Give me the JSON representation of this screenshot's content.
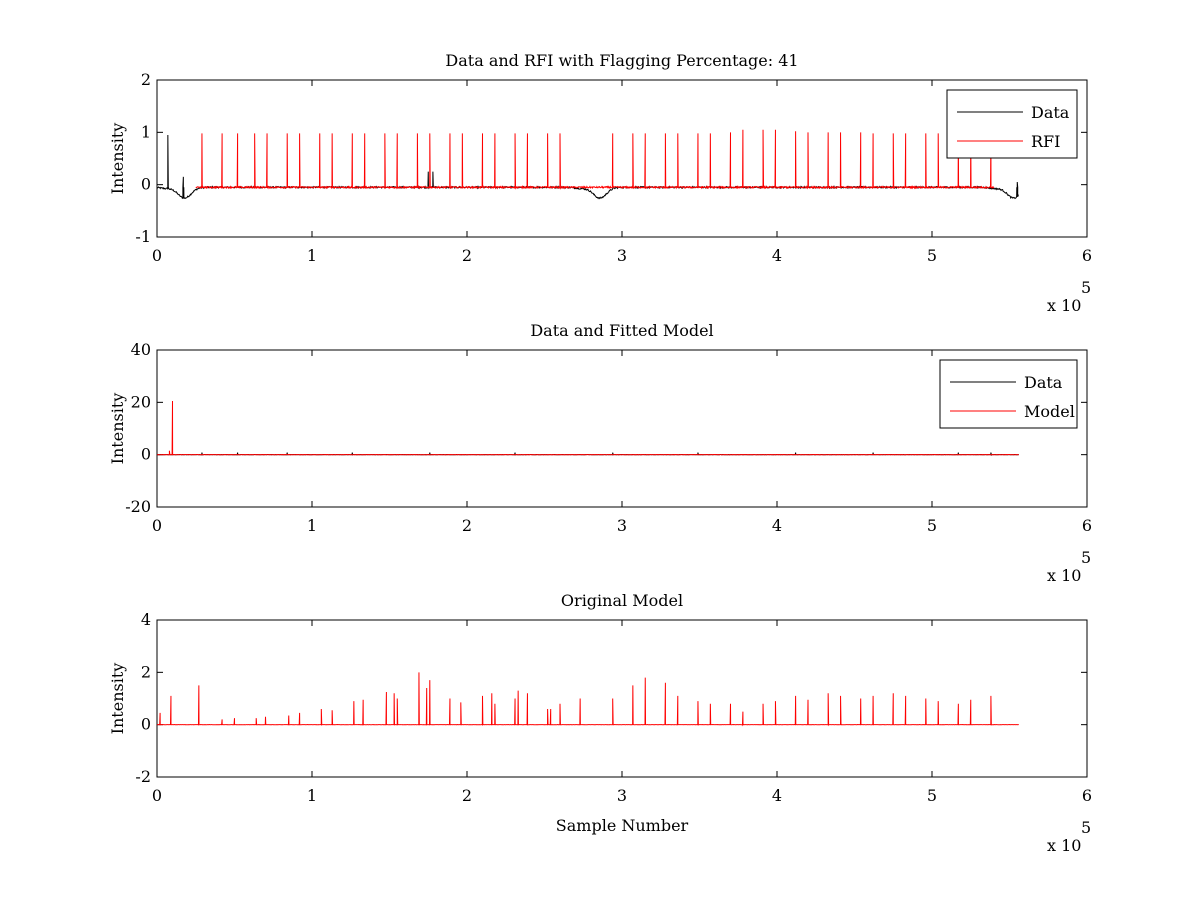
{
  "figure": {
    "background": "#ffffff",
    "axis_color": "#000000"
  },
  "chart_data": [
    {
      "type": "line",
      "title": "Data and RFI with Flagging Percentage: 41",
      "xlabel": "",
      "ylabel": "Intensity",
      "xlim": [
        0,
        600000
      ],
      "ylim": [
        -1,
        2
      ],
      "xticks": [
        0,
        1,
        2,
        3,
        4,
        5,
        6
      ],
      "yticks": [
        -1,
        0,
        1,
        2
      ],
      "x_multiplier": "x 10",
      "x_exponent": "5",
      "grid": false,
      "legend": {
        "placement": "top-right",
        "entries": [
          {
            "label": "Data",
            "color": "#000000"
          },
          {
            "label": "RFI",
            "color": "#ff0000"
          }
        ]
      },
      "series": [
        {
          "name": "Data",
          "color": "#000000",
          "baseline": -0.05,
          "x_range": [
            0,
            556000
          ],
          "dips": [
            [
              15000,
              -0.22
            ],
            [
              283000,
              -0.22
            ],
            [
              550000,
              -0.22
            ]
          ],
          "spikes": [
            [
              7000,
              0.95
            ],
            [
              17000,
              0.15
            ],
            [
              175000,
              0.25
            ],
            [
              178000,
              0.25
            ],
            [
              555000,
              0.05
            ]
          ]
        },
        {
          "name": "RFI",
          "color": "#ff0000",
          "baseline": -0.05,
          "x_range": [
            25000,
            540000
          ],
          "spikes": [
            [
              29000,
              0.98
            ],
            [
              42000,
              0.98
            ],
            [
              52000,
              0.98
            ],
            [
              63000,
              0.98
            ],
            [
              71000,
              0.98
            ],
            [
              84000,
              0.98
            ],
            [
              92000,
              0.98
            ],
            [
              105000,
              0.98
            ],
            [
              113000,
              0.98
            ],
            [
              126000,
              0.98
            ],
            [
              134000,
              0.98
            ],
            [
              147000,
              0.98
            ],
            [
              155000,
              0.98
            ],
            [
              168000,
              0.98
            ],
            [
              176000,
              0.98
            ],
            [
              189000,
              0.98
            ],
            [
              197000,
              0.98
            ],
            [
              210000,
              0.98
            ],
            [
              218000,
              0.98
            ],
            [
              231000,
              0.98
            ],
            [
              239000,
              0.98
            ],
            [
              252000,
              0.98
            ],
            [
              260000,
              0.98
            ],
            [
              294000,
              0.98
            ],
            [
              307000,
              0.98
            ],
            [
              315000,
              0.98
            ],
            [
              328000,
              0.98
            ],
            [
              336000,
              0.98
            ],
            [
              349000,
              0.98
            ],
            [
              357000,
              0.98
            ],
            [
              370000,
              1.0
            ],
            [
              378000,
              1.05
            ],
            [
              391000,
              1.05
            ],
            [
              399000,
              1.05
            ],
            [
              412000,
              1.02
            ],
            [
              420000,
              1.0
            ],
            [
              433000,
              1.0
            ],
            [
              441000,
              1.0
            ],
            [
              454000,
              1.0
            ],
            [
              462000,
              0.98
            ],
            [
              475000,
              0.98
            ],
            [
              483000,
              0.98
            ],
            [
              496000,
              0.98
            ],
            [
              504000,
              0.98
            ],
            [
              517000,
              0.98
            ],
            [
              525000,
              0.98
            ],
            [
              538000,
              0.98
            ]
          ]
        }
      ]
    },
    {
      "type": "line",
      "title": "Data and Fitted Model",
      "xlabel": "",
      "ylabel": "Intensity",
      "xlim": [
        0,
        600000
      ],
      "ylim": [
        -20,
        40
      ],
      "xticks": [
        0,
        1,
        2,
        3,
        4,
        5,
        6
      ],
      "yticks": [
        -20,
        0,
        20,
        40
      ],
      "x_multiplier": "x 10",
      "x_exponent": "5",
      "grid": false,
      "legend": {
        "placement": "top-right",
        "entries": [
          {
            "label": "Data",
            "color": "#000000"
          },
          {
            "label": "Model",
            "color": "#ff0000"
          }
        ]
      },
      "series": [
        {
          "name": "Data",
          "color": "#000000",
          "baseline": 0,
          "x_range": [
            0,
            556000
          ],
          "spikes": [
            [
              29000,
              0.8
            ],
            [
              52000,
              0.8
            ],
            [
              84000,
              0.8
            ],
            [
              126000,
              0.8
            ],
            [
              176000,
              0.8
            ],
            [
              231000,
              0.8
            ],
            [
              294000,
              0.8
            ],
            [
              349000,
              0.8
            ],
            [
              412000,
              0.8
            ],
            [
              462000,
              0.8
            ],
            [
              517000,
              0.8
            ],
            [
              538000,
              0.8
            ]
          ]
        },
        {
          "name": "Model",
          "color": "#ff0000",
          "baseline": 0,
          "x_range": [
            0,
            556000
          ],
          "spikes": [
            [
              10000,
              20.5
            ],
            [
              8000,
              1.5
            ]
          ]
        }
      ]
    },
    {
      "type": "line",
      "title": "Original Model",
      "xlabel": "Sample Number",
      "ylabel": "Intensity",
      "xlim": [
        0,
        600000
      ],
      "ylim": [
        -2,
        4
      ],
      "xticks": [
        0,
        1,
        2,
        3,
        4,
        5,
        6
      ],
      "yticks": [
        -2,
        0,
        2,
        4
      ],
      "x_multiplier": "x 10",
      "x_exponent": "5",
      "grid": false,
      "series": [
        {
          "color": "#ff0000",
          "baseline": 0,
          "x_range": [
            0,
            556000
          ],
          "spikes": [
            [
              2000,
              0.45
            ],
            [
              9000,
              1.1
            ],
            [
              27000,
              1.5
            ],
            [
              42000,
              0.2
            ],
            [
              50000,
              0.25
            ],
            [
              64000,
              0.25
            ],
            [
              70000,
              0.3
            ],
            [
              85000,
              0.35
            ],
            [
              92000,
              0.45
            ],
            [
              106000,
              0.6
            ],
            [
              113000,
              0.55
            ],
            [
              127000,
              0.9
            ],
            [
              133000,
              0.95
            ],
            [
              148000,
              1.25
            ],
            [
              153000,
              1.2
            ],
            [
              155000,
              1.0
            ],
            [
              169000,
              2.0
            ],
            [
              174000,
              1.4
            ],
            [
              176000,
              1.7
            ],
            [
              189000,
              1.0
            ],
            [
              196000,
              0.85
            ],
            [
              210000,
              1.1
            ],
            [
              216000,
              1.2
            ],
            [
              218000,
              0.8
            ],
            [
              231000,
              1.0
            ],
            [
              233000,
              1.3
            ],
            [
              239000,
              1.2
            ],
            [
              252000,
              0.6
            ],
            [
              254000,
              0.6
            ],
            [
              260000,
              0.8
            ],
            [
              273000,
              1.0
            ],
            [
              294000,
              1.0
            ],
            [
              307000,
              1.5
            ],
            [
              315000,
              1.8
            ],
            [
              328000,
              1.6
            ],
            [
              336000,
              1.1
            ],
            [
              349000,
              0.9
            ],
            [
              357000,
              0.8
            ],
            [
              370000,
              0.8
            ],
            [
              378000,
              0.5
            ],
            [
              391000,
              0.8
            ],
            [
              399000,
              0.9
            ],
            [
              412000,
              1.1
            ],
            [
              420000,
              0.95
            ],
            [
              433000,
              1.2
            ],
            [
              441000,
              1.1
            ],
            [
              454000,
              1.0
            ],
            [
              462000,
              1.1
            ],
            [
              475000,
              1.2
            ],
            [
              483000,
              1.1
            ],
            [
              496000,
              1.0
            ],
            [
              504000,
              0.9
            ],
            [
              517000,
              0.8
            ],
            [
              525000,
              0.95
            ],
            [
              538000,
              1.1
            ]
          ]
        }
      ]
    }
  ]
}
